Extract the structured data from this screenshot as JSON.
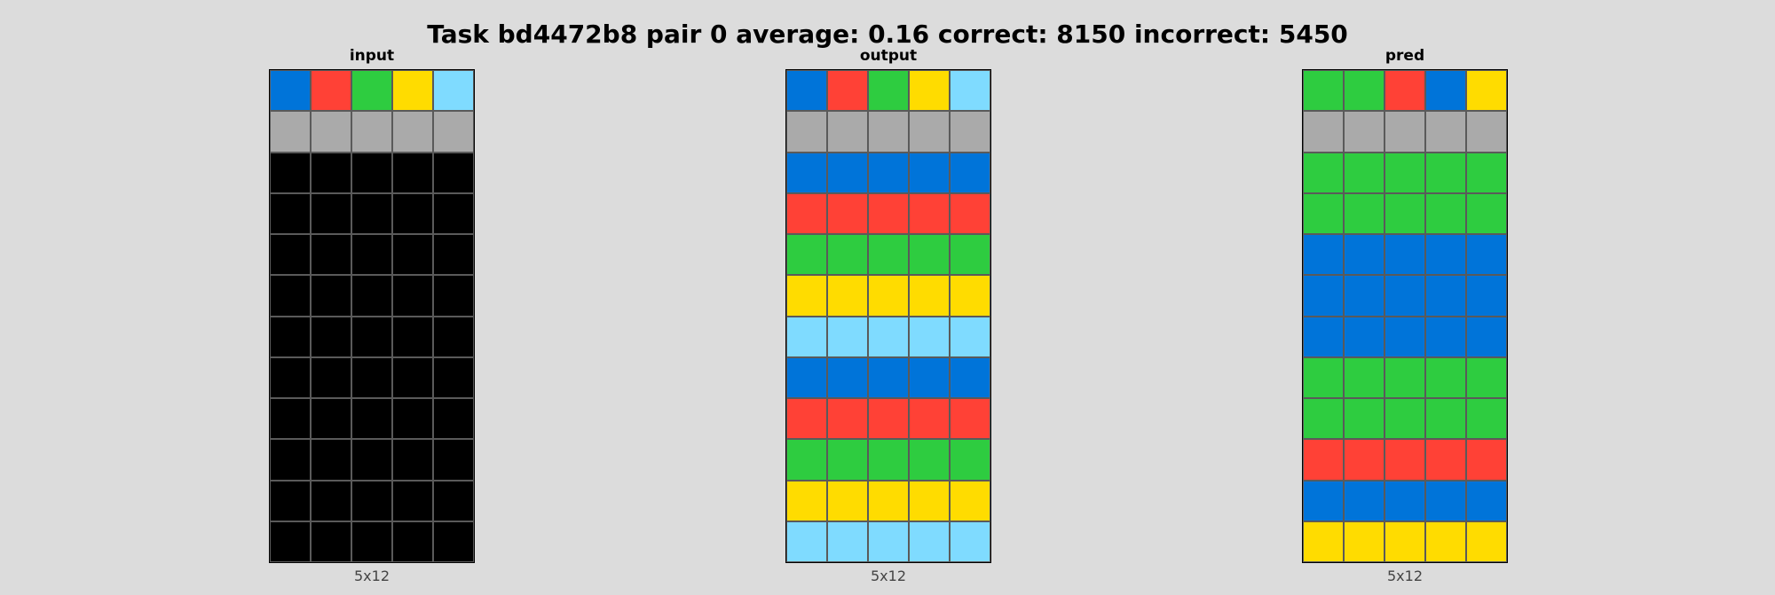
{
  "title": "Task bd4472b8 pair 0 average: 0.16 correct: 8150 incorrect: 5450",
  "palette": {
    "0": "#000000",
    "1": "#0074d9",
    "2": "#ff4136",
    "3": "#2ecc40",
    "4": "#ffdc00",
    "5": "#aaaaaa",
    "8": "#7fdbff"
  },
  "panels": [
    {
      "label": "input",
      "dims": "5x12",
      "grid": [
        [
          1,
          2,
          3,
          4,
          8
        ],
        [
          5,
          5,
          5,
          5,
          5
        ],
        [
          0,
          0,
          0,
          0,
          0
        ],
        [
          0,
          0,
          0,
          0,
          0
        ],
        [
          0,
          0,
          0,
          0,
          0
        ],
        [
          0,
          0,
          0,
          0,
          0
        ],
        [
          0,
          0,
          0,
          0,
          0
        ],
        [
          0,
          0,
          0,
          0,
          0
        ],
        [
          0,
          0,
          0,
          0,
          0
        ],
        [
          0,
          0,
          0,
          0,
          0
        ],
        [
          0,
          0,
          0,
          0,
          0
        ],
        [
          0,
          0,
          0,
          0,
          0
        ]
      ]
    },
    {
      "label": "output",
      "dims": "5x12",
      "grid": [
        [
          1,
          2,
          3,
          4,
          8
        ],
        [
          5,
          5,
          5,
          5,
          5
        ],
        [
          1,
          1,
          1,
          1,
          1
        ],
        [
          2,
          2,
          2,
          2,
          2
        ],
        [
          3,
          3,
          3,
          3,
          3
        ],
        [
          4,
          4,
          4,
          4,
          4
        ],
        [
          8,
          8,
          8,
          8,
          8
        ],
        [
          1,
          1,
          1,
          1,
          1
        ],
        [
          2,
          2,
          2,
          2,
          2
        ],
        [
          3,
          3,
          3,
          3,
          3
        ],
        [
          4,
          4,
          4,
          4,
          4
        ],
        [
          8,
          8,
          8,
          8,
          8
        ]
      ]
    },
    {
      "label": "pred",
      "dims": "5x12",
      "grid": [
        [
          3,
          3,
          2,
          1,
          4
        ],
        [
          5,
          5,
          5,
          5,
          5
        ],
        [
          3,
          3,
          3,
          3,
          3
        ],
        [
          3,
          3,
          3,
          3,
          3
        ],
        [
          1,
          1,
          1,
          1,
          1
        ],
        [
          1,
          1,
          1,
          1,
          1
        ],
        [
          1,
          1,
          1,
          1,
          1
        ],
        [
          3,
          3,
          3,
          3,
          3
        ],
        [
          3,
          3,
          3,
          3,
          3
        ],
        [
          2,
          2,
          2,
          2,
          2
        ],
        [
          1,
          1,
          1,
          1,
          1
        ],
        [
          4,
          4,
          4,
          4,
          4
        ]
      ]
    }
  ]
}
